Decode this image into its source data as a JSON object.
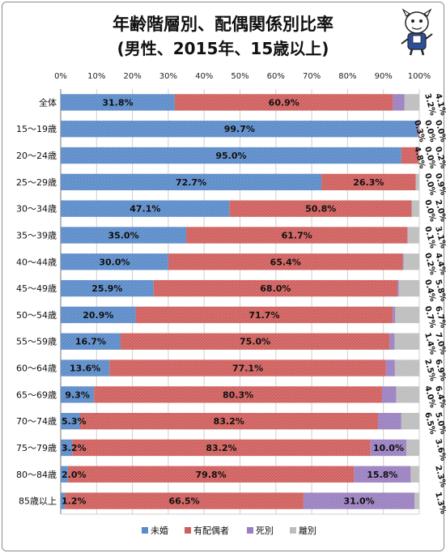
{
  "title_line1": "年齢階層別、配偶関係別比率",
  "title_line2": "(男性、2015年、15歳以上)",
  "chart_data": {
    "type": "bar",
    "orientation": "horizontal",
    "stacked": "percent",
    "title": "年齢階層別、配偶関係別比率 (男性、2015年、15歳以上)",
    "xlim": [
      0,
      100
    ],
    "x_ticks": [
      "0%",
      "10%",
      "20%",
      "30%",
      "40%",
      "50%",
      "60%",
      "70%",
      "80%",
      "90%",
      "100%"
    ],
    "grid": true,
    "legend_position": "bottom",
    "categories": [
      "全体",
      "15～19歳",
      "20～24歳",
      "25～29歳",
      "30～34歳",
      "35～39歳",
      "40～44歳",
      "45～49歳",
      "50～54歳",
      "55～59歳",
      "60～64歳",
      "65～69歳",
      "70～74歳",
      "75～79歳",
      "80～84歳",
      "85歳以上"
    ],
    "series": [
      {
        "name": "未婚",
        "color": "#5b8bc9",
        "values": [
          31.8,
          99.7,
          95.0,
          72.7,
          47.1,
          35.0,
          30.0,
          25.9,
          20.9,
          16.7,
          13.6,
          9.3,
          5.3,
          3.2,
          2.0,
          1.2
        ],
        "labels": [
          "31.8%",
          "99.7%",
          "95.0%",
          "72.7%",
          "47.1%",
          "35.0%",
          "30.0%",
          "25.9%",
          "20.9%",
          "16.7%",
          "13.6%",
          "9.3%",
          "5.3%",
          "3.2%",
          "2.0%",
          "1.2%"
        ]
      },
      {
        "name": "有配偶者",
        "color": "#cf5f5d",
        "values": [
          60.9,
          0.3,
          4.8,
          26.3,
          50.8,
          61.7,
          65.4,
          68.0,
          71.7,
          75.0,
          77.1,
          80.3,
          83.2,
          83.2,
          79.8,
          66.5
        ],
        "labels": [
          "60.9%",
          "0.3%",
          "4.8%",
          "26.3%",
          "50.8%",
          "61.7%",
          "65.4%",
          "68.0%",
          "71.7%",
          "75.0%",
          "77.1%",
          "80.3%",
          "83.2%",
          "83.2%",
          "79.8%",
          "66.5%"
        ]
      },
      {
        "name": "死別",
        "color": "#9a80c0",
        "values": [
          3.2,
          0.0,
          0.0,
          0.0,
          0.0,
          0.1,
          0.2,
          0.4,
          0.7,
          1.4,
          2.5,
          4.0,
          6.5,
          10.0,
          15.8,
          31.0
        ],
        "labels": [
          "3.2%",
          "0.0%",
          "0.0%",
          "0.0%",
          "0.0%",
          "0.1%",
          "0.2%",
          "0.4%",
          "0.7%",
          "1.4%",
          "2.5%",
          "4.0%",
          "6.5%",
          "10.0%",
          "15.8%",
          "31.0%"
        ]
      },
      {
        "name": "離別",
        "color": "#bdbdbd",
        "values": [
          4.1,
          0.0,
          0.2,
          0.9,
          2.0,
          3.1,
          4.4,
          5.8,
          6.7,
          7.0,
          6.9,
          6.4,
          5.0,
          3.6,
          2.3,
          1.3
        ],
        "labels": [
          "4.1%",
          "0.0%",
          "0.2%",
          "0.9%",
          "2.0%",
          "3.1%",
          "4.4%",
          "5.8%",
          "6.7%",
          "7.0%",
          "6.9%",
          "6.4%",
          "5.0%",
          "3.6%",
          "2.3%",
          "1.3%"
        ]
      }
    ]
  }
}
